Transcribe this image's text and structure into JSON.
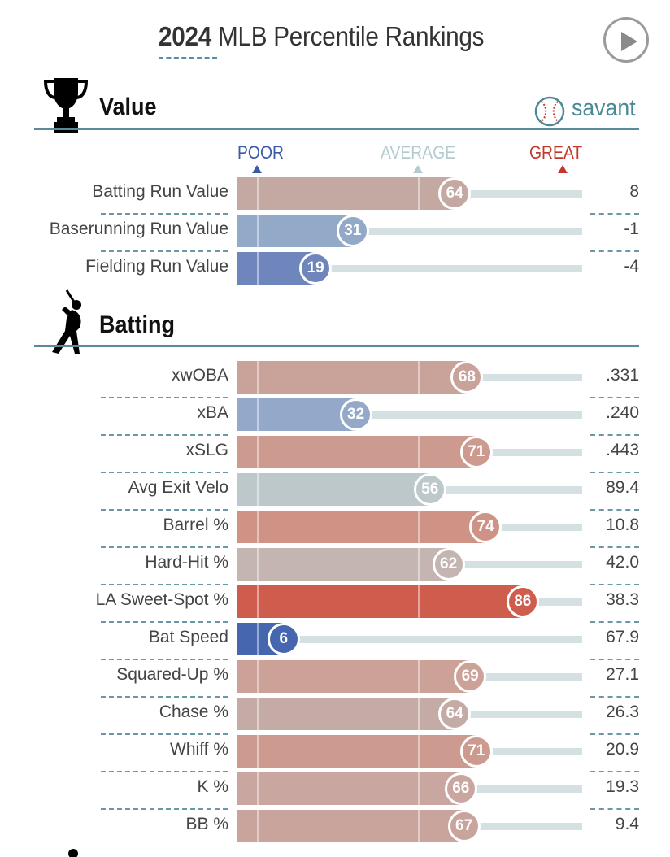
{
  "header": {
    "year": "2024",
    "title": "MLB Percentile Rankings"
  },
  "sections": {
    "value": {
      "title": "Value",
      "icon": "trophy-icon"
    },
    "batting": {
      "title": "Batting",
      "icon": "batter-icon"
    }
  },
  "brand": {
    "name": "savant",
    "icon": "baseball-icon",
    "color": "#4a8a96"
  },
  "scale": {
    "poor": "POOR",
    "average": "AVERAGE",
    "great": "GREAT",
    "poor_color": "#3b5ba8",
    "average_color": "#b3cbd0",
    "great_color": "#c0392b"
  },
  "value_rows": [
    {
      "label": "Batting Run Value",
      "percentile": 64,
      "value": "8"
    },
    {
      "label": "Baserunning Run Value",
      "percentile": 31,
      "value": "-1"
    },
    {
      "label": "Fielding Run Value",
      "percentile": 19,
      "value": "-4"
    }
  ],
  "batting_rows": [
    {
      "label": "xwOBA",
      "percentile": 68,
      "value": ".331"
    },
    {
      "label": "xBA",
      "percentile": 32,
      "value": ".240"
    },
    {
      "label": "xSLG",
      "percentile": 71,
      "value": ".443"
    },
    {
      "label": "Avg Exit Velo",
      "percentile": 56,
      "value": "89.4"
    },
    {
      "label": "Barrel %",
      "percentile": 74,
      "value": "10.8"
    },
    {
      "label": "Hard-Hit %",
      "percentile": 62,
      "value": "42.0"
    },
    {
      "label": "LA Sweet-Spot %",
      "percentile": 86,
      "value": "38.3"
    },
    {
      "label": "Bat Speed",
      "percentile": 6,
      "value": "67.9"
    },
    {
      "label": "Squared-Up %",
      "percentile": 69,
      "value": "27.1"
    },
    {
      "label": "Chase %",
      "percentile": 64,
      "value": "26.3"
    },
    {
      "label": "Whiff %",
      "percentile": 71,
      "value": "20.9"
    },
    {
      "label": "K %",
      "percentile": 66,
      "value": "19.3"
    },
    {
      "label": "BB %",
      "percentile": 67,
      "value": "9.4"
    }
  ],
  "colors": {
    "row_colors": {
      "Batting Run Value": "#c4a9a3",
      "Baserunning Run Value": "#93a9c8",
      "Fielding Run Value": "#6f86bd",
      "xwOBA": "#c9a29a",
      "xBA": "#94a9c9",
      "xSLG": "#cc9a8e",
      "Avg Exit Velo": "#bcc8ca",
      "Barrel %": "#cf9386",
      "Hard-Hit %": "#c4b5b1",
      "LA Sweet-Spot %": "#cf5d4d",
      "Bat Speed": "#4667b0",
      "Squared-Up %": "#cba198",
      "Chase %": "#c4aba6",
      "Whiff %": "#cc9a8e",
      "K %": "#c9a7a0",
      "BB %": "#c9a49c"
    }
  }
}
